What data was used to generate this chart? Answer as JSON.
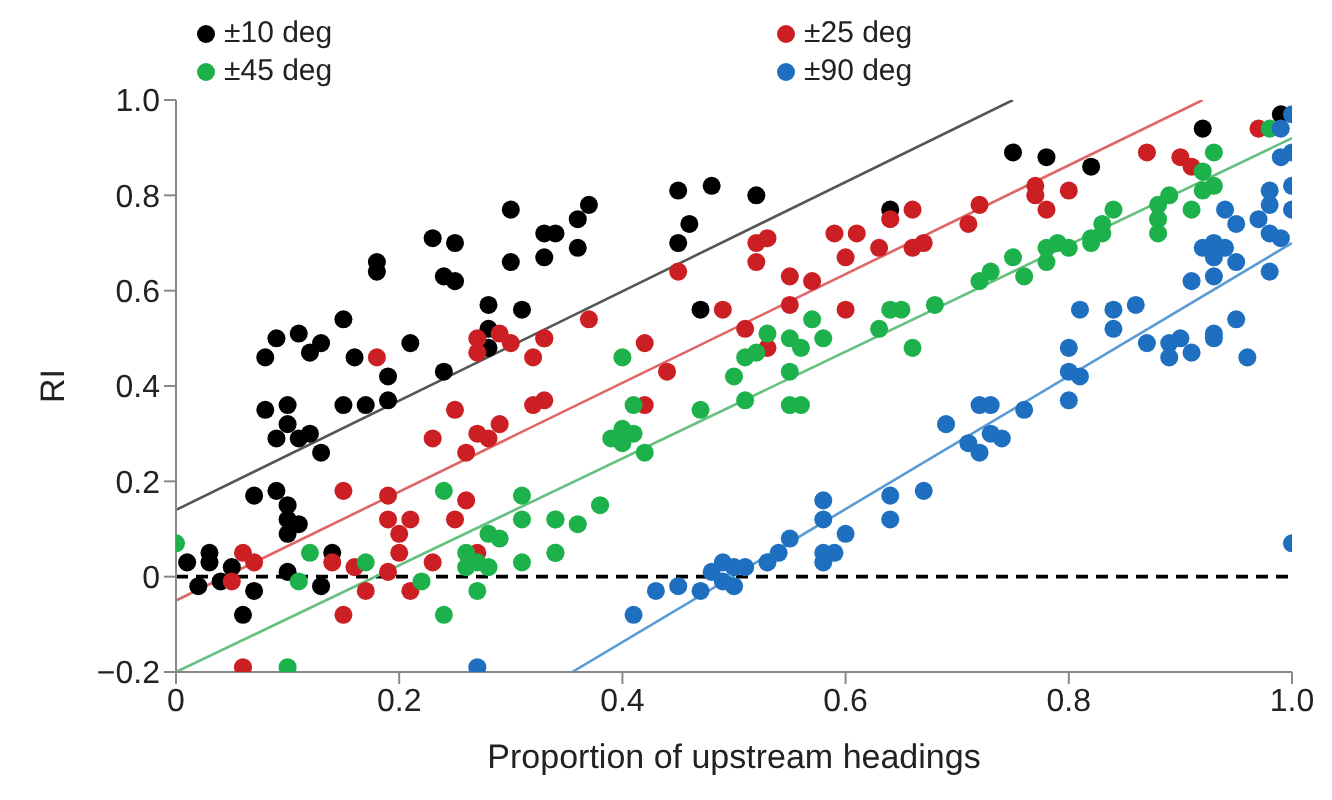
{
  "chart_data": {
    "type": "scatter",
    "xlabel": "Proportion of upstream headings",
    "ylabel": "RI",
    "xlim": [
      0,
      1
    ],
    "ylim": [
      -0.2,
      1.0
    ],
    "xticks": [
      0,
      {
        "value": 0.2,
        "label": "0.2"
      },
      {
        "value": 0.4,
        "label": "0.4"
      },
      {
        "value": 0.6,
        "label": "0.6"
      },
      {
        "value": 0.8,
        "label": "0.8"
      },
      {
        "value": 1,
        "label": "1.0"
      }
    ],
    "yticks": [
      {
        "value": -0.2,
        "label": "−0.2"
      },
      0,
      {
        "value": 0.2,
        "label": "0.2"
      },
      {
        "value": 0.4,
        "label": "0.4"
      },
      {
        "value": 0.6,
        "label": "0.6"
      },
      {
        "value": 0.8,
        "label": "0.8"
      },
      {
        "value": 1,
        "label": "1.0"
      }
    ],
    "grid": false,
    "legend": "top",
    "marker": "circle",
    "ref_lines": [
      {
        "axis": "y",
        "value": 0,
        "color": "#000000",
        "line_style": "dashed"
      }
    ],
    "series": [
      {
        "name": "±10 deg",
        "color": "#000000",
        "x": [
          0.01,
          0.02,
          0.03,
          0.03,
          0.04,
          0.05,
          0.06,
          0.07,
          0.07,
          0.08,
          0.08,
          0.09,
          0.09,
          0.09,
          0.1,
          0.1,
          0.1,
          0.1,
          0.1,
          0.1,
          0.11,
          0.11,
          0.11,
          0.12,
          0.12,
          0.13,
          0.13,
          0.13,
          0.14,
          0.15,
          0.15,
          0.16,
          0.17,
          0.18,
          0.18,
          0.19,
          0.19,
          0.21,
          0.23,
          0.24,
          0.24,
          0.25,
          0.25,
          0.28,
          0.28,
          0.28,
          0.3,
          0.3,
          0.31,
          0.33,
          0.33,
          0.34,
          0.36,
          0.37,
          0.36,
          0.45,
          0.46,
          0.45,
          0.48,
          0.47,
          0.52,
          0.64,
          0.75,
          0.78,
          0.82,
          0.92,
          0.99
        ],
        "values": [
          0.03,
          -0.02,
          0.05,
          0.03,
          -0.01,
          0.02,
          -0.08,
          -0.03,
          0.17,
          0.35,
          0.46,
          0.5,
          0.18,
          0.29,
          0.36,
          0.32,
          0.15,
          0.12,
          0.09,
          0.01,
          0.51,
          0.29,
          0.11,
          0.47,
          0.3,
          0.49,
          0.26,
          -0.02,
          0.05,
          0.54,
          0.36,
          0.46,
          0.36,
          0.66,
          0.64,
          0.42,
          0.37,
          0.49,
          0.71,
          0.43,
          0.63,
          0.7,
          0.62,
          0.57,
          0.52,
          0.48,
          0.77,
          0.66,
          0.56,
          0.72,
          0.67,
          0.72,
          0.75,
          0.78,
          0.69,
          0.81,
          0.74,
          0.7,
          0.82,
          0.56,
          0.8,
          0.77,
          0.89,
          0.88,
          0.86,
          0.94,
          0.97
        ]
      },
      {
        "name": "±25 deg",
        "color": "#cc1f24",
        "x": [
          0.05,
          0.06,
          0.06,
          0.07,
          0.14,
          0.15,
          0.15,
          0.16,
          0.17,
          0.18,
          0.19,
          0.19,
          0.2,
          0.2,
          0.21,
          0.19,
          0.21,
          0.23,
          0.23,
          0.25,
          0.25,
          0.26,
          0.26,
          0.27,
          0.27,
          0.28,
          0.27,
          0.27,
          0.29,
          0.29,
          0.3,
          0.32,
          0.32,
          0.33,
          0.33,
          0.33,
          0.37,
          0.42,
          0.42,
          0.44,
          0.45,
          0.49,
          0.51,
          0.52,
          0.53,
          0.52,
          0.55,
          0.55,
          0.57,
          0.53,
          0.59,
          0.61,
          0.6,
          0.6,
          0.63,
          0.64,
          0.66,
          0.66,
          0.67,
          0.71,
          0.72,
          0.77,
          0.77,
          0.78,
          0.8,
          0.87,
          0.9,
          0.91,
          0.97
        ],
        "values": [
          -0.01,
          -0.19,
          0.05,
          0.03,
          0.03,
          0.18,
          -0.08,
          0.02,
          -0.03,
          0.46,
          0.17,
          0.12,
          0.09,
          0.05,
          0.12,
          0.01,
          -0.03,
          0.29,
          0.03,
          0.35,
          0.12,
          0.26,
          0.16,
          0.3,
          0.05,
          0.29,
          0.5,
          0.47,
          0.51,
          0.32,
          0.49,
          0.46,
          0.36,
          0.37,
          0.5,
          0.5,
          0.54,
          0.49,
          0.36,
          0.43,
          0.64,
          0.56,
          0.52,
          0.7,
          0.71,
          0.66,
          0.63,
          0.57,
          0.62,
          0.48,
          0.72,
          0.72,
          0.67,
          0.56,
          0.69,
          0.75,
          0.77,
          0.69,
          0.7,
          0.74,
          0.78,
          0.82,
          0.8,
          0.77,
          0.81,
          0.89,
          0.88,
          0.86,
          0.94
        ]
      },
      {
        "name": "±45 deg",
        "color": "#1db14b",
        "x": [
          0,
          0.1,
          0.12,
          0.11,
          0.17,
          0.22,
          0.24,
          0.24,
          0.26,
          0.26,
          0.27,
          0.27,
          0.28,
          0.28,
          0.29,
          0.31,
          0.31,
          0.31,
          0.34,
          0.34,
          0.34,
          0.34,
          0.36,
          0.38,
          0.39,
          0.4,
          0.4,
          0.41,
          0.41,
          0.42,
          0.4,
          0.47,
          0.5,
          0.51,
          0.51,
          0.52,
          0.53,
          0.55,
          0.56,
          0.55,
          0.55,
          0.56,
          0.57,
          0.58,
          0.63,
          0.64,
          0.65,
          0.66,
          0.68,
          0.72,
          0.73,
          0.75,
          0.76,
          0.78,
          0.78,
          0.79,
          0.8,
          0.82,
          0.82,
          0.83,
          0.83,
          0.84,
          0.88,
          0.88,
          0.88,
          0.89,
          0.91,
          0.92,
          0.92,
          0.93,
          0.93,
          0.98
        ],
        "values": [
          0.07,
          -0.19,
          0.05,
          -0.01,
          0.03,
          -0.01,
          0.18,
          -0.08,
          0.05,
          0.02,
          0.03,
          -0.03,
          0.09,
          0.02,
          0.08,
          0.17,
          0.12,
          0.03,
          0.12,
          0.05,
          0.12,
          0.05,
          0.11,
          0.15,
          0.29,
          0.31,
          0.28,
          0.3,
          0.36,
          0.26,
          0.46,
          0.35,
          0.42,
          0.46,
          0.37,
          0.47,
          0.51,
          0.5,
          0.48,
          0.43,
          0.36,
          0.36,
          0.54,
          0.5,
          0.52,
          0.56,
          0.56,
          0.48,
          0.57,
          0.62,
          0.64,
          0.67,
          0.63,
          0.69,
          0.66,
          0.7,
          0.69,
          0.71,
          0.7,
          0.72,
          0.74,
          0.77,
          0.78,
          0.75,
          0.72,
          0.8,
          0.77,
          0.81,
          0.85,
          0.89,
          0.82,
          0.94
        ]
      },
      {
        "name": "±90 deg",
        "color": "#1f6fc0",
        "x": [
          0.27,
          0.41,
          0.43,
          0.45,
          0.47,
          0.48,
          0.49,
          0.5,
          0.51,
          0.49,
          0.5,
          0.53,
          0.54,
          0.55,
          0.58,
          0.58,
          0.58,
          0.58,
          0.59,
          0.6,
          0.64,
          0.64,
          0.67,
          0.69,
          0.71,
          0.72,
          0.72,
          0.73,
          0.73,
          0.74,
          0.76,
          0.8,
          0.8,
          0.8,
          0.81,
          0.81,
          0.84,
          0.84,
          0.86,
          0.87,
          0.89,
          0.89,
          0.9,
          0.91,
          0.93,
          0.93,
          0.95,
          0.96,
          0.91,
          0.92,
          0.93,
          0.93,
          0.93,
          0.94,
          0.94,
          0.95,
          0.95,
          0.97,
          0.98,
          0.98,
          0.98,
          0.98,
          0.99,
          1.0,
          1.0,
          0.99,
          1.0,
          1.0,
          0.99,
          1.0
        ],
        "values": [
          -0.19,
          -0.08,
          -0.03,
          -0.02,
          -0.03,
          0.01,
          0.03,
          0.02,
          0.02,
          -0.01,
          -0.02,
          0.03,
          0.05,
          0.08,
          0.16,
          0.12,
          0.05,
          0.03,
          0.05,
          0.09,
          0.17,
          0.12,
          0.18,
          0.32,
          0.28,
          0.26,
          0.36,
          0.36,
          0.3,
          0.29,
          0.35,
          0.48,
          0.43,
          0.37,
          0.42,
          0.56,
          0.56,
          0.52,
          0.57,
          0.49,
          0.49,
          0.46,
          0.5,
          0.47,
          0.51,
          0.5,
          0.54,
          0.46,
          0.62,
          0.69,
          0.7,
          0.67,
          0.63,
          0.69,
          0.77,
          0.74,
          0.66,
          0.75,
          0.81,
          0.78,
          0.72,
          0.64,
          0.71,
          0.82,
          0.77,
          0.88,
          0.89,
          0.97,
          0.94,
          0.07
        ]
      },
      {
        "type": "line",
        "marker": "none",
        "color": "#555555",
        "x": [
          0,
          0.75
        ],
        "values": [
          0.14,
          1.0
        ]
      },
      {
        "type": "line",
        "marker": "none",
        "color": "#e06666",
        "x": [
          0,
          0.92
        ],
        "values": [
          -0.05,
          1.0
        ]
      },
      {
        "type": "line",
        "marker": "none",
        "color": "#66c080",
        "x": [
          0,
          1.0
        ],
        "values": [
          -0.2,
          0.92
        ]
      },
      {
        "type": "line",
        "marker": "none",
        "color": "#5a9bd5",
        "x": [
          0.355,
          1.0
        ],
        "values": [
          -0.2,
          0.7
        ]
      }
    ]
  }
}
